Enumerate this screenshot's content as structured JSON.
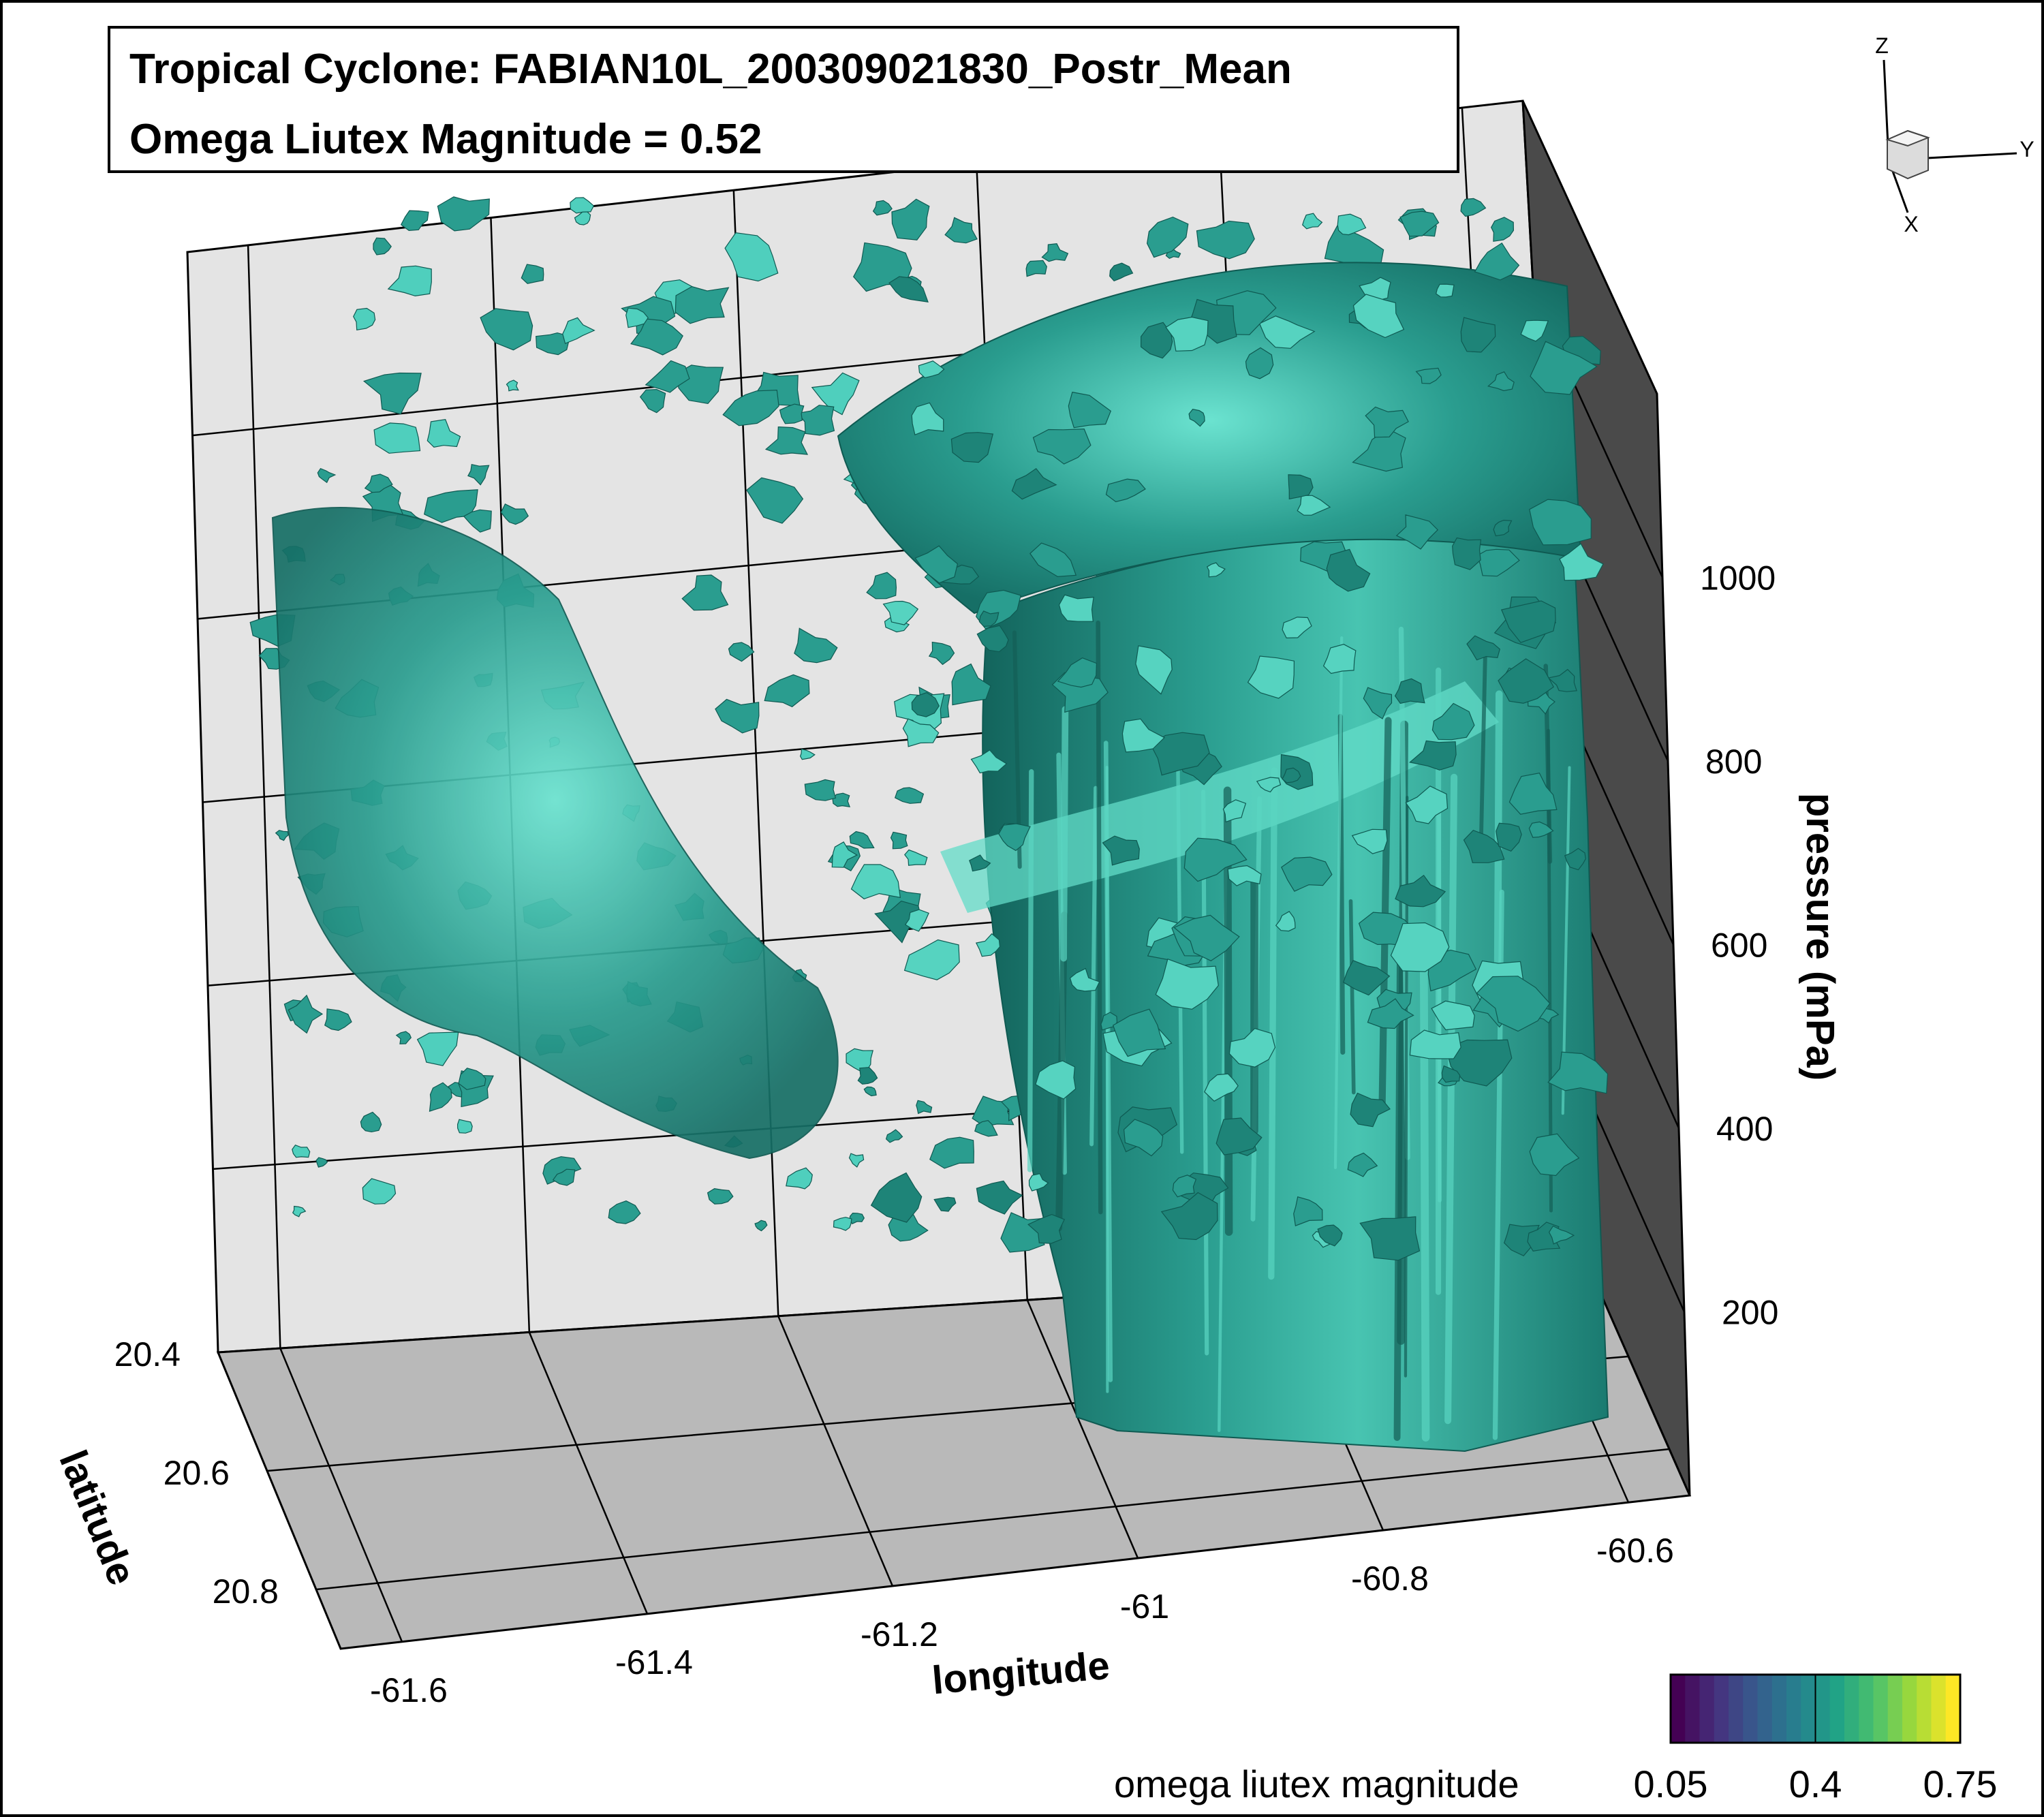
{
  "chart_data": {
    "type": "isosurface-3d",
    "title": "Tropical Cyclone: FABIAN10L_200309021830_Postr_Mean",
    "subtitle": "Omega Liutex Magnitude = 0.52",
    "axes": {
      "x": {
        "label": "longitude",
        "ticks": [
          "-61.6",
          "-61.4",
          "-61.2",
          "-61",
          "-60.8",
          "-60.6"
        ],
        "range": [
          -61.65,
          -60.55
        ]
      },
      "y": {
        "label": "latitude",
        "ticks": [
          "20.4",
          "20.6",
          "20.8"
        ],
        "range": [
          20.4,
          20.9
        ]
      },
      "z": {
        "label": "pressure (mPa)",
        "ticks": [
          "200",
          "400",
          "600",
          "800",
          "1000"
        ],
        "range": [
          0,
          1200
        ]
      }
    },
    "triad": {
      "x": "X",
      "y": "Y",
      "z": "Z"
    },
    "iso_value": 0.52,
    "surface_color": "#2a9d8f",
    "colorbar": {
      "label": "omega liutex magnitude",
      "ticks": [
        "0.05",
        "0.4",
        "0.75"
      ],
      "range": [
        0.05,
        0.75
      ],
      "colormap": [
        "#440154",
        "#46327e",
        "#365c8d",
        "#277f8e",
        "#1fa187",
        "#4ac16d",
        "#a0da39",
        "#fde725"
      ]
    },
    "grid": true
  }
}
